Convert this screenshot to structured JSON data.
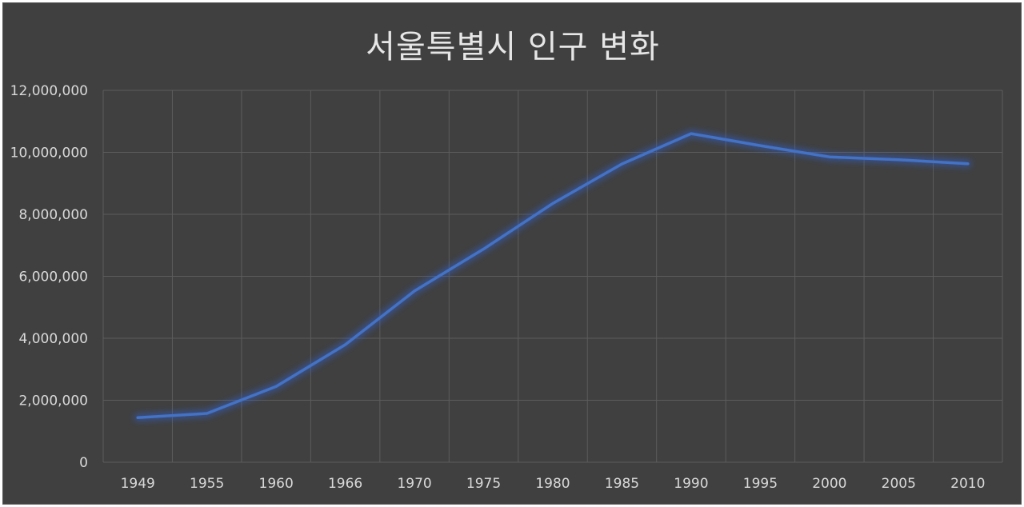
{
  "chart_data": {
    "type": "line",
    "title": "서울특별시 인구 변화",
    "categories": [
      "1949",
      "1955",
      "1960",
      "1966",
      "1970",
      "1975",
      "1980",
      "1985",
      "1990",
      "1995",
      "2000",
      "2005",
      "2010"
    ],
    "series": [
      {
        "values": [
          1437670,
          1574868,
          2445402,
          3793280,
          5525262,
          6879464,
          8350616,
          9625755,
          10603250,
          10217177,
          9853972,
          9762546,
          9631482
        ]
      }
    ],
    "y_tick_labels": [
      "0",
      "2,000,000",
      "4,000,000",
      "6,000,000",
      "8,000,000",
      "10,000,000",
      "12,000,000"
    ],
    "y_ticks": [
      0,
      2000000,
      4000000,
      6000000,
      8000000,
      10000000,
      12000000
    ],
    "ylim": [
      0,
      12000000
    ],
    "grid": true,
    "legend": "none",
    "colors": {
      "background": "#404040",
      "line": "#4472c4",
      "glow": "#2f5fd0",
      "grid": "#5c5c5c",
      "text": "#d9d9d9",
      "title": "#e6e6e6"
    }
  }
}
